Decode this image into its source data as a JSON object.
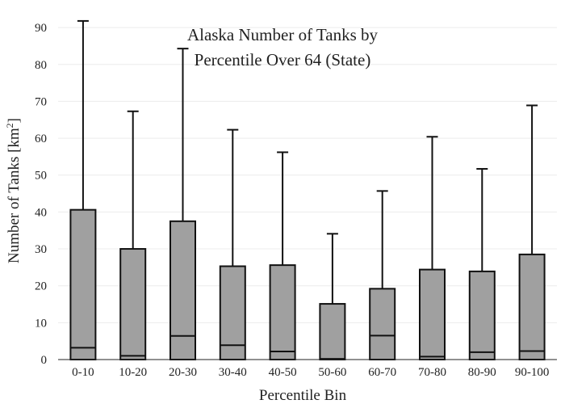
{
  "chart_data": {
    "type": "box",
    "title_lines": [
      "Alaska Number of Tanks by",
      "Percentile Over 64 (State)"
    ],
    "xlabel": "Percentile Bin",
    "ylabel": "Number of Tanks  [km",
    "ylabel_sup": "2",
    "ylabel_end": "]",
    "ylim": [
      0,
      92
    ],
    "yticks": [
      0,
      10,
      20,
      30,
      40,
      50,
      60,
      70,
      80,
      90
    ],
    "grid": true,
    "categories": [
      "0-10",
      "10-20",
      "20-30",
      "30-40",
      "40-50",
      "50-60",
      "60-70",
      "70-80",
      "80-90",
      "90-100"
    ],
    "boxes": [
      {
        "lower_whisker": 0,
        "q1": 0,
        "median": 3.2,
        "q3": 40.6,
        "upper_whisker": 91.8
      },
      {
        "lower_whisker": 0,
        "q1": 0,
        "median": 1.0,
        "q3": 30.0,
        "upper_whisker": 67.3
      },
      {
        "lower_whisker": 0,
        "q1": 0,
        "median": 6.4,
        "q3": 37.5,
        "upper_whisker": 84.3
      },
      {
        "lower_whisker": 0,
        "q1": 0,
        "median": 3.9,
        "q3": 25.3,
        "upper_whisker": 62.3
      },
      {
        "lower_whisker": 0,
        "q1": 0,
        "median": 2.2,
        "q3": 25.6,
        "upper_whisker": 56.2
      },
      {
        "lower_whisker": 0,
        "q1": 0,
        "median": 0.2,
        "q3": 15.1,
        "upper_whisker": 34.1
      },
      {
        "lower_whisker": 0,
        "q1": 0,
        "median": 6.5,
        "q3": 19.2,
        "upper_whisker": 45.7
      },
      {
        "lower_whisker": 0,
        "q1": 0,
        "median": 0.8,
        "q3": 24.4,
        "upper_whisker": 60.4
      },
      {
        "lower_whisker": 0,
        "q1": 0,
        "median": 2.0,
        "q3": 23.9,
        "upper_whisker": 51.7
      },
      {
        "lower_whisker": 0,
        "q1": 0,
        "median": 2.3,
        "q3": 28.5,
        "upper_whisker": 68.9
      }
    ],
    "box_color": "#a0a0a0"
  }
}
